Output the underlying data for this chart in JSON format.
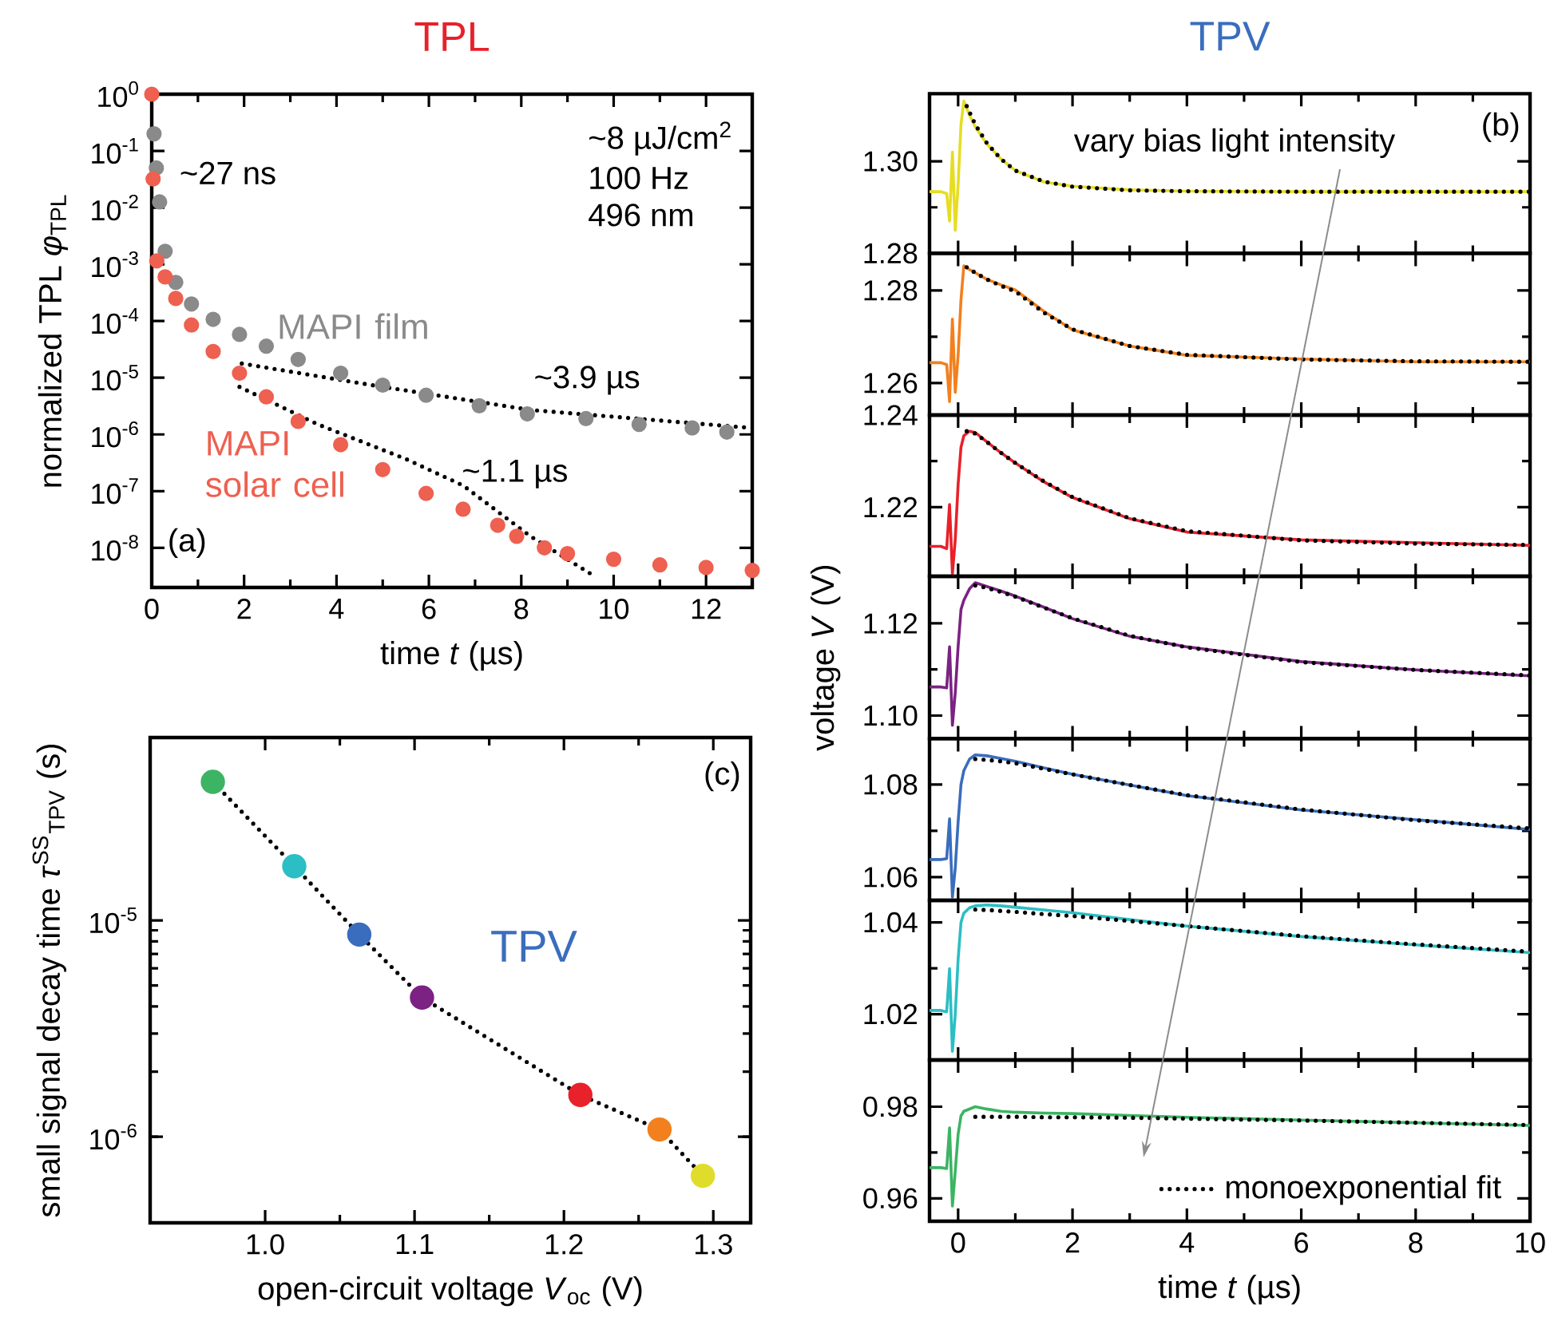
{
  "chart_data": [
    {
      "type": "scatter",
      "title": "TPL",
      "xlabel": "time *t* (µs)",
      "ylabel": "normalized TPL *φ*$_{TPL}$",
      "log": "y",
      "marker": "circle",
      "xlim": [
        0,
        13
      ],
      "ylim": [
        2e-09,
        1
      ],
      "xticks": [
        0,
        2,
        4,
        6,
        8,
        10,
        12
      ],
      "yticks": [
        {
          "value": 1,
          "label": "10$^{0}$"
        },
        {
          "value": 0.1,
          "label": "10$^{-1}$"
        },
        {
          "value": 0.01,
          "label": "10$^{-2}$"
        },
        {
          "value": 0.001,
          "label": "10$^{-3}$"
        },
        {
          "value": 0.0001,
          "label": "10$^{-4}$"
        },
        {
          "value": 1e-05,
          "label": "10$^{-5}$"
        },
        {
          "value": 1e-06,
          "label": "10$^{-6}$"
        },
        {
          "value": 1e-07,
          "label": "10$^{-7}$"
        },
        {
          "value": 1e-08,
          "label": "10$^{-8}$"
        }
      ],
      "annotations": [
        "~27 ns",
        "~8 µJ/cm$^{2}$",
        "100 Hz",
        "496 nm",
        "~3.9 µs",
        "~1.1 µs",
        "(a)"
      ],
      "series": [
        {
          "name": "MAPI film",
          "color": "#8a8a8a",
          "x": [
            0.05,
            0.1,
            0.17,
            0.29,
            0.52,
            0.86,
            1.33,
            1.9,
            2.48,
            3.17,
            4.09,
            5.0,
            5.94,
            7.09,
            8.13,
            9.4,
            10.55,
            11.7,
            12.45
          ],
          "values": [
            0.2,
            0.05,
            0.0126,
            0.0017,
            0.00048,
            0.0002,
            0.000107,
            5.8e-05,
            3.6e-05,
            2.1e-05,
            1.2e-05,
            7.4e-06,
            4.9e-06,
            3.2e-06,
            2.3e-06,
            1.9e-06,
            1.5e-06,
            1.3e-06,
            1.1e-06
          ]
        },
        {
          "name": "MAPI solar cell",
          "color": "#ee6050",
          "x": [
            0,
            0.03,
            0.11,
            0.29,
            0.52,
            0.86,
            1.33,
            1.9,
            2.48,
            3.17,
            4.09,
            5.0,
            5.94,
            6.74,
            7.49,
            7.9,
            8.5,
            9.0,
            10.0,
            11.0,
            12.0,
            13.0
          ],
          "values": [
            1,
            0.032,
            0.00115,
            0.0006,
            0.00025,
            8.5e-05,
            2.9e-05,
            1.2e-05,
            4.6e-06,
            1.7e-06,
            6.6e-07,
            2.4e-07,
            9.1e-08,
            4.8e-08,
            2.5e-08,
            1.6e-08,
            1e-08,
            7.9e-09,
            6.3e-09,
            5e-09,
            4.5e-09,
            4e-09
          ]
        },
        {
          "type": "line",
          "marker": "none",
          "line_style": "dotted",
          "color": "#000000",
          "x": [
            1.95,
            4.77,
            8.2,
            12.5,
            13
          ],
          "values": [
            1.78e-05,
            7.4e-06,
            2.7e-06,
            1.4e-06,
            1.3e-06
          ]
        },
        {
          "type": "line",
          "marker": "none",
          "line_style": "dotted",
          "color": "#000000",
          "x": [
            1.9,
            3.6,
            5.5,
            6.74,
            8.2,
            9.5
          ],
          "values": [
            6.9e-06,
            1.5e-06,
            3.7e-07,
            1.26e-07,
            1.6e-08,
            3.5e-09
          ]
        }
      ]
    },
    {
      "type": "line",
      "title": "TPV",
      "tick_labels": "y",
      "xlim": [
        -0.5,
        10
      ],
      "ylim": [
        1.28,
        1.3147
      ],
      "xticks": [
        0,
        2,
        4,
        6,
        8,
        10
      ],
      "yticks": [
        {
          "value": 1.28,
          "label": "1.28"
        },
        {
          "value": 1.3,
          "label": "1.30"
        }
      ],
      "annotations": [
        "(b)",
        "vary bias light intensity"
      ],
      "series": [
        {
          "color": "#e6dd22",
          "x": [
            -0.5,
            -0.3,
            -0.2,
            -0.15,
            -0.1,
            -0.05,
            0,
            0.05,
            0.1,
            0.2,
            0.3,
            0.5,
            0.75,
            1,
            1.5,
            2,
            3,
            4,
            6,
            8,
            10
          ],
          "values": [
            1.2934,
            1.2934,
            1.293,
            1.287,
            1.302,
            1.285,
            1.295,
            1.308,
            1.3131,
            1.31,
            1.3075,
            1.3038,
            1.3005,
            1.298,
            1.2955,
            1.2946,
            1.2938,
            1.2935,
            1.2934,
            1.2934,
            1.2934
          ]
        },
        {
          "color": "#000000",
          "line_style": "dotted",
          "x": [
            0.15,
            0.3,
            0.5,
            0.75,
            1,
            1.5,
            2,
            3,
            4,
            6,
            8,
            10
          ],
          "values": [
            1.312,
            1.308,
            1.304,
            1.3005,
            1.298,
            1.2956,
            1.2945,
            1.2937,
            1.2935,
            1.2934,
            1.2934,
            1.2934
          ]
        }
      ]
    },
    {
      "type": "line",
      "tick_labels": "y",
      "xlim": [
        -0.5,
        10
      ],
      "ylim": [
        1.2531,
        1.288
      ],
      "xticks": [
        0,
        2,
        4,
        6,
        8,
        10
      ],
      "yticks": [
        {
          "value": 1.26,
          "label": "1.26"
        },
        {
          "value": 1.28,
          "label": "1.28"
        }
      ],
      "series": [
        {
          "color": "#f2801e",
          "x": [
            -0.5,
            -0.3,
            -0.2,
            -0.15,
            -0.1,
            -0.05,
            0,
            0.05,
            0.1,
            0.2,
            0.3,
            0.5,
            0.75,
            1,
            1.5,
            2,
            3,
            4,
            6,
            8,
            10
          ],
          "values": [
            1.2644,
            1.2644,
            1.264,
            1.256,
            1.2738,
            1.258,
            1.266,
            1.278,
            1.2853,
            1.2845,
            1.2838,
            1.2824,
            1.2812,
            1.2801,
            1.2755,
            1.2715,
            1.268,
            1.266,
            1.2652,
            1.2646,
            1.2646
          ]
        },
        {
          "color": "#000000",
          "line_style": "dotted",
          "x": [
            0.15,
            0.3,
            0.5,
            0.75,
            1,
            1.5,
            2,
            3,
            4,
            6,
            8,
            10
          ],
          "values": [
            1.285,
            1.2838,
            1.2824,
            1.281,
            1.2798,
            1.2752,
            1.2716,
            1.268,
            1.2661,
            1.2651,
            1.2647,
            1.2646
          ]
        }
      ]
    },
    {
      "type": "line",
      "tick_labels": "y",
      "xlim": [
        -0.5,
        10
      ],
      "ylim": [
        1.205,
        1.24
      ],
      "xticks": [
        0,
        2,
        4,
        6,
        8,
        10
      ],
      "yticks": [
        {
          "value": 1.22,
          "label": "1.22"
        },
        {
          "value": 1.24,
          "label": "1.24"
        }
      ],
      "series": [
        {
          "color": "#e8212a",
          "x": [
            -0.5,
            -0.3,
            -0.2,
            -0.15,
            -0.1,
            -0.05,
            0,
            0.05,
            0.1,
            0.2,
            0.3,
            0.5,
            0.75,
            1,
            1.5,
            2,
            3,
            4,
            6,
            8,
            10
          ],
          "values": [
            1.2115,
            1.2115,
            1.211,
            1.2206,
            1.2056,
            1.213,
            1.225,
            1.233,
            1.2355,
            1.2365,
            1.2362,
            1.2342,
            1.2318,
            1.2296,
            1.2255,
            1.2221,
            1.2175,
            1.2146,
            1.2129,
            1.2123,
            1.2117
          ]
        },
        {
          "color": "#000000",
          "line_style": "dotted",
          "x": [
            0.15,
            0.3,
            0.5,
            0.75,
            1,
            1.5,
            2,
            3,
            4,
            6,
            8,
            10
          ],
          "values": [
            1.2365,
            1.236,
            1.2342,
            1.2318,
            1.2296,
            1.2256,
            1.2222,
            1.2176,
            1.2148,
            1.2128,
            1.2121,
            1.2118
          ]
        }
      ]
    },
    {
      "type": "line",
      "tick_labels": "y",
      "ylabel": "voltage *V* (V)",
      "xlim": [
        -0.5,
        10
      ],
      "ylim": [
        1.095,
        1.1302
      ],
      "xticks": [
        0,
        2,
        4,
        6,
        8,
        10
      ],
      "yticks": [
        {
          "value": 1.1,
          "label": "1.10"
        },
        {
          "value": 1.12,
          "label": "1.12"
        }
      ],
      "series": [
        {
          "color": "#7b2283",
          "x": [
            -0.5,
            -0.3,
            -0.2,
            -0.15,
            -0.1,
            -0.05,
            0,
            0.05,
            0.1,
            0.2,
            0.3,
            0.5,
            0.75,
            1,
            1.5,
            2,
            3,
            4,
            6,
            8,
            10
          ],
          "values": [
            1.1062,
            1.1062,
            1.106,
            1.1149,
            1.0979,
            1.105,
            1.115,
            1.123,
            1.125,
            1.1275,
            1.1288,
            1.128,
            1.127,
            1.1259,
            1.1235,
            1.121,
            1.1172,
            1.1149,
            1.1117,
            1.1099,
            1.1086
          ]
        },
        {
          "color": "#000000",
          "line_style": "dotted",
          "x": [
            0.3,
            0.5,
            0.75,
            1,
            1.5,
            2,
            3,
            4,
            6,
            8,
            10
          ],
          "values": [
            1.1282,
            1.1277,
            1.1268,
            1.1258,
            1.1234,
            1.1211,
            1.1173,
            1.1148,
            1.1116,
            1.1099,
            1.1087
          ]
        }
      ]
    },
    {
      "type": "line",
      "tick_labels": "y",
      "xlim": [
        -0.5,
        10
      ],
      "ylim": [
        1.055,
        1.0899
      ],
      "xticks": [
        0,
        2,
        4,
        6,
        8,
        10
      ],
      "yticks": [
        {
          "value": 1.06,
          "label": "1.06"
        },
        {
          "value": 1.08,
          "label": "1.08"
        }
      ],
      "series": [
        {
          "color": "#3a6dbd",
          "x": [
            -0.5,
            -0.3,
            -0.2,
            -0.15,
            -0.1,
            -0.05,
            0,
            0.05,
            0.1,
            0.2,
            0.3,
            0.5,
            0.75,
            1,
            1.5,
            2,
            3,
            4,
            6,
            8,
            10
          ],
          "values": [
            1.0638,
            1.0638,
            1.064,
            1.0726,
            1.0557,
            1.062,
            1.072,
            1.08,
            1.083,
            1.0855,
            1.0864,
            1.0862,
            1.0856,
            1.085,
            1.0836,
            1.0822,
            1.0799,
            1.0776,
            1.0745,
            1.0724,
            1.0703
          ]
        },
        {
          "color": "#000000",
          "line_style": "dotted",
          "x": [
            0.3,
            0.5,
            0.75,
            1,
            1.5,
            2,
            3,
            4,
            6,
            8,
            10
          ],
          "values": [
            1.0855,
            1.0853,
            1.085,
            1.0846,
            1.0834,
            1.0822,
            1.0799,
            1.0777,
            1.0746,
            1.0723,
            1.0705
          ]
        }
      ]
    },
    {
      "type": "line",
      "tick_labels": "y",
      "xlim": [
        -0.5,
        10
      ],
      "ylim": [
        1.01,
        1.0448
      ],
      "xticks": [
        0,
        2,
        4,
        6,
        8,
        10
      ],
      "yticks": [
        {
          "value": 1.02,
          "label": "1.02"
        },
        {
          "value": 1.04,
          "label": "1.04"
        }
      ],
      "series": [
        {
          "color": "#2bbec4",
          "x": [
            -0.5,
            -0.3,
            -0.2,
            -0.15,
            -0.1,
            -0.05,
            0,
            0.05,
            0.1,
            0.2,
            0.3,
            0.5,
            0.75,
            1,
            1.5,
            2,
            3,
            4,
            6,
            8,
            10
          ],
          "values": [
            1.0208,
            1.0208,
            1.0205,
            1.0299,
            1.0119,
            1.02,
            1.032,
            1.04,
            1.042,
            1.0432,
            1.0436,
            1.0438,
            1.0436,
            1.0433,
            1.0427,
            1.0421,
            1.0406,
            1.0392,
            1.0369,
            1.0351,
            1.0334
          ]
        },
        {
          "color": "#000000",
          "line_style": "dotted",
          "x": [
            0.3,
            0.5,
            0.75,
            1,
            1.5,
            2,
            3,
            4,
            6,
            8,
            10
          ],
          "values": [
            1.0428,
            1.0427,
            1.0425,
            1.0423,
            1.0418,
            1.0414,
            1.0403,
            1.0392,
            1.037,
            1.0352,
            1.0336
          ]
        }
      ]
    },
    {
      "type": "line",
      "xlabel": "time *t* (µs)",
      "legend": "bottom right",
      "xlim": [
        -0.5,
        10
      ],
      "ylim": [
        0.955,
        0.9902
      ],
      "xticks": [
        0,
        2,
        4,
        6,
        8,
        10
      ],
      "yticks": [
        {
          "value": 0.96,
          "label": "0.96"
        },
        {
          "value": 0.98,
          "label": "0.98"
        }
      ],
      "series": [
        {
          "color": "#3cb464",
          "x": [
            -0.5,
            -0.3,
            -0.2,
            -0.15,
            -0.1,
            -0.05,
            0,
            0.05,
            0.1,
            0.2,
            0.3,
            0.5,
            0.75,
            1,
            1.5,
            2,
            3,
            4,
            6,
            8,
            10
          ],
          "values": [
            0.9667,
            0.9667,
            0.9665,
            0.9754,
            0.9583,
            0.966,
            0.974,
            0.978,
            0.979,
            0.9795,
            0.98,
            0.9795,
            0.979,
            0.9788,
            0.9786,
            0.9785,
            0.9781,
            0.9777,
            0.9771,
            0.9765,
            0.9759
          ]
        },
        {
          "name": "monoexponential fit",
          "color": "#000000",
          "line_style": "dotted",
          "x": [
            0.3,
            0.5,
            0.75,
            1,
            1.5,
            2,
            3,
            4,
            6,
            8,
            10
          ],
          "values": [
            0.9778,
            0.9778,
            0.9778,
            0.9778,
            0.9777,
            0.9777,
            0.9776,
            0.9774,
            0.977,
            0.9765,
            0.976
          ]
        }
      ]
    },
    {
      "type": "scatter",
      "xlabel": "open-circuit voltage *V*$_{oc}$ (V)",
      "ylabel": "small signal decay time *τ*$^{SS}$$_{TPV}$ (s)",
      "log": "y",
      "marker": "circle",
      "xlim": [
        0.923,
        1.325
      ],
      "ylim": [
        4e-07,
        7e-05
      ],
      "xticks": [
        {
          "value": 1,
          "label": "1.0"
        },
        {
          "value": 1.1,
          "label": "1.1"
        },
        {
          "value": 1.2,
          "label": "1.2"
        },
        {
          "value": 1.3,
          "label": "1.3"
        }
      ],
      "yticks": [
        {
          "value": 1e-06,
          "label": "10$^{-6}$"
        },
        {
          "value": 1e-05,
          "label": "10$^{-5}$"
        }
      ],
      "annotations": [
        "(c)",
        "TPV"
      ],
      "series": [
        {
          "type": "line",
          "marker": "none",
          "line_style": "dotted",
          "color": "#000000",
          "x": [
            0.965,
            1.0195,
            1.063,
            1.105,
            1.211,
            1.264,
            1.293
          ],
          "values": [
            4.37e-05,
            1.78e-05,
            8.6e-06,
            4.4e-06,
            1.56e-06,
            1.08e-06,
            6.6e-07
          ]
        },
        {
          "colors": [
            "#3cb464",
            "#2bbec4",
            "#3a6dbd",
            "#7b2283",
            "#e8212a",
            "#f2801e",
            "#e0dc2a"
          ],
          "x": [
            0.965,
            1.0195,
            1.063,
            1.105,
            1.211,
            1.264,
            1.293
          ],
          "values": [
            4.37e-05,
            1.78e-05,
            8.6e-06,
            4.4e-06,
            1.56e-06,
            1.08e-06,
            6.6e-07
          ]
        }
      ]
    }
  ]
}
